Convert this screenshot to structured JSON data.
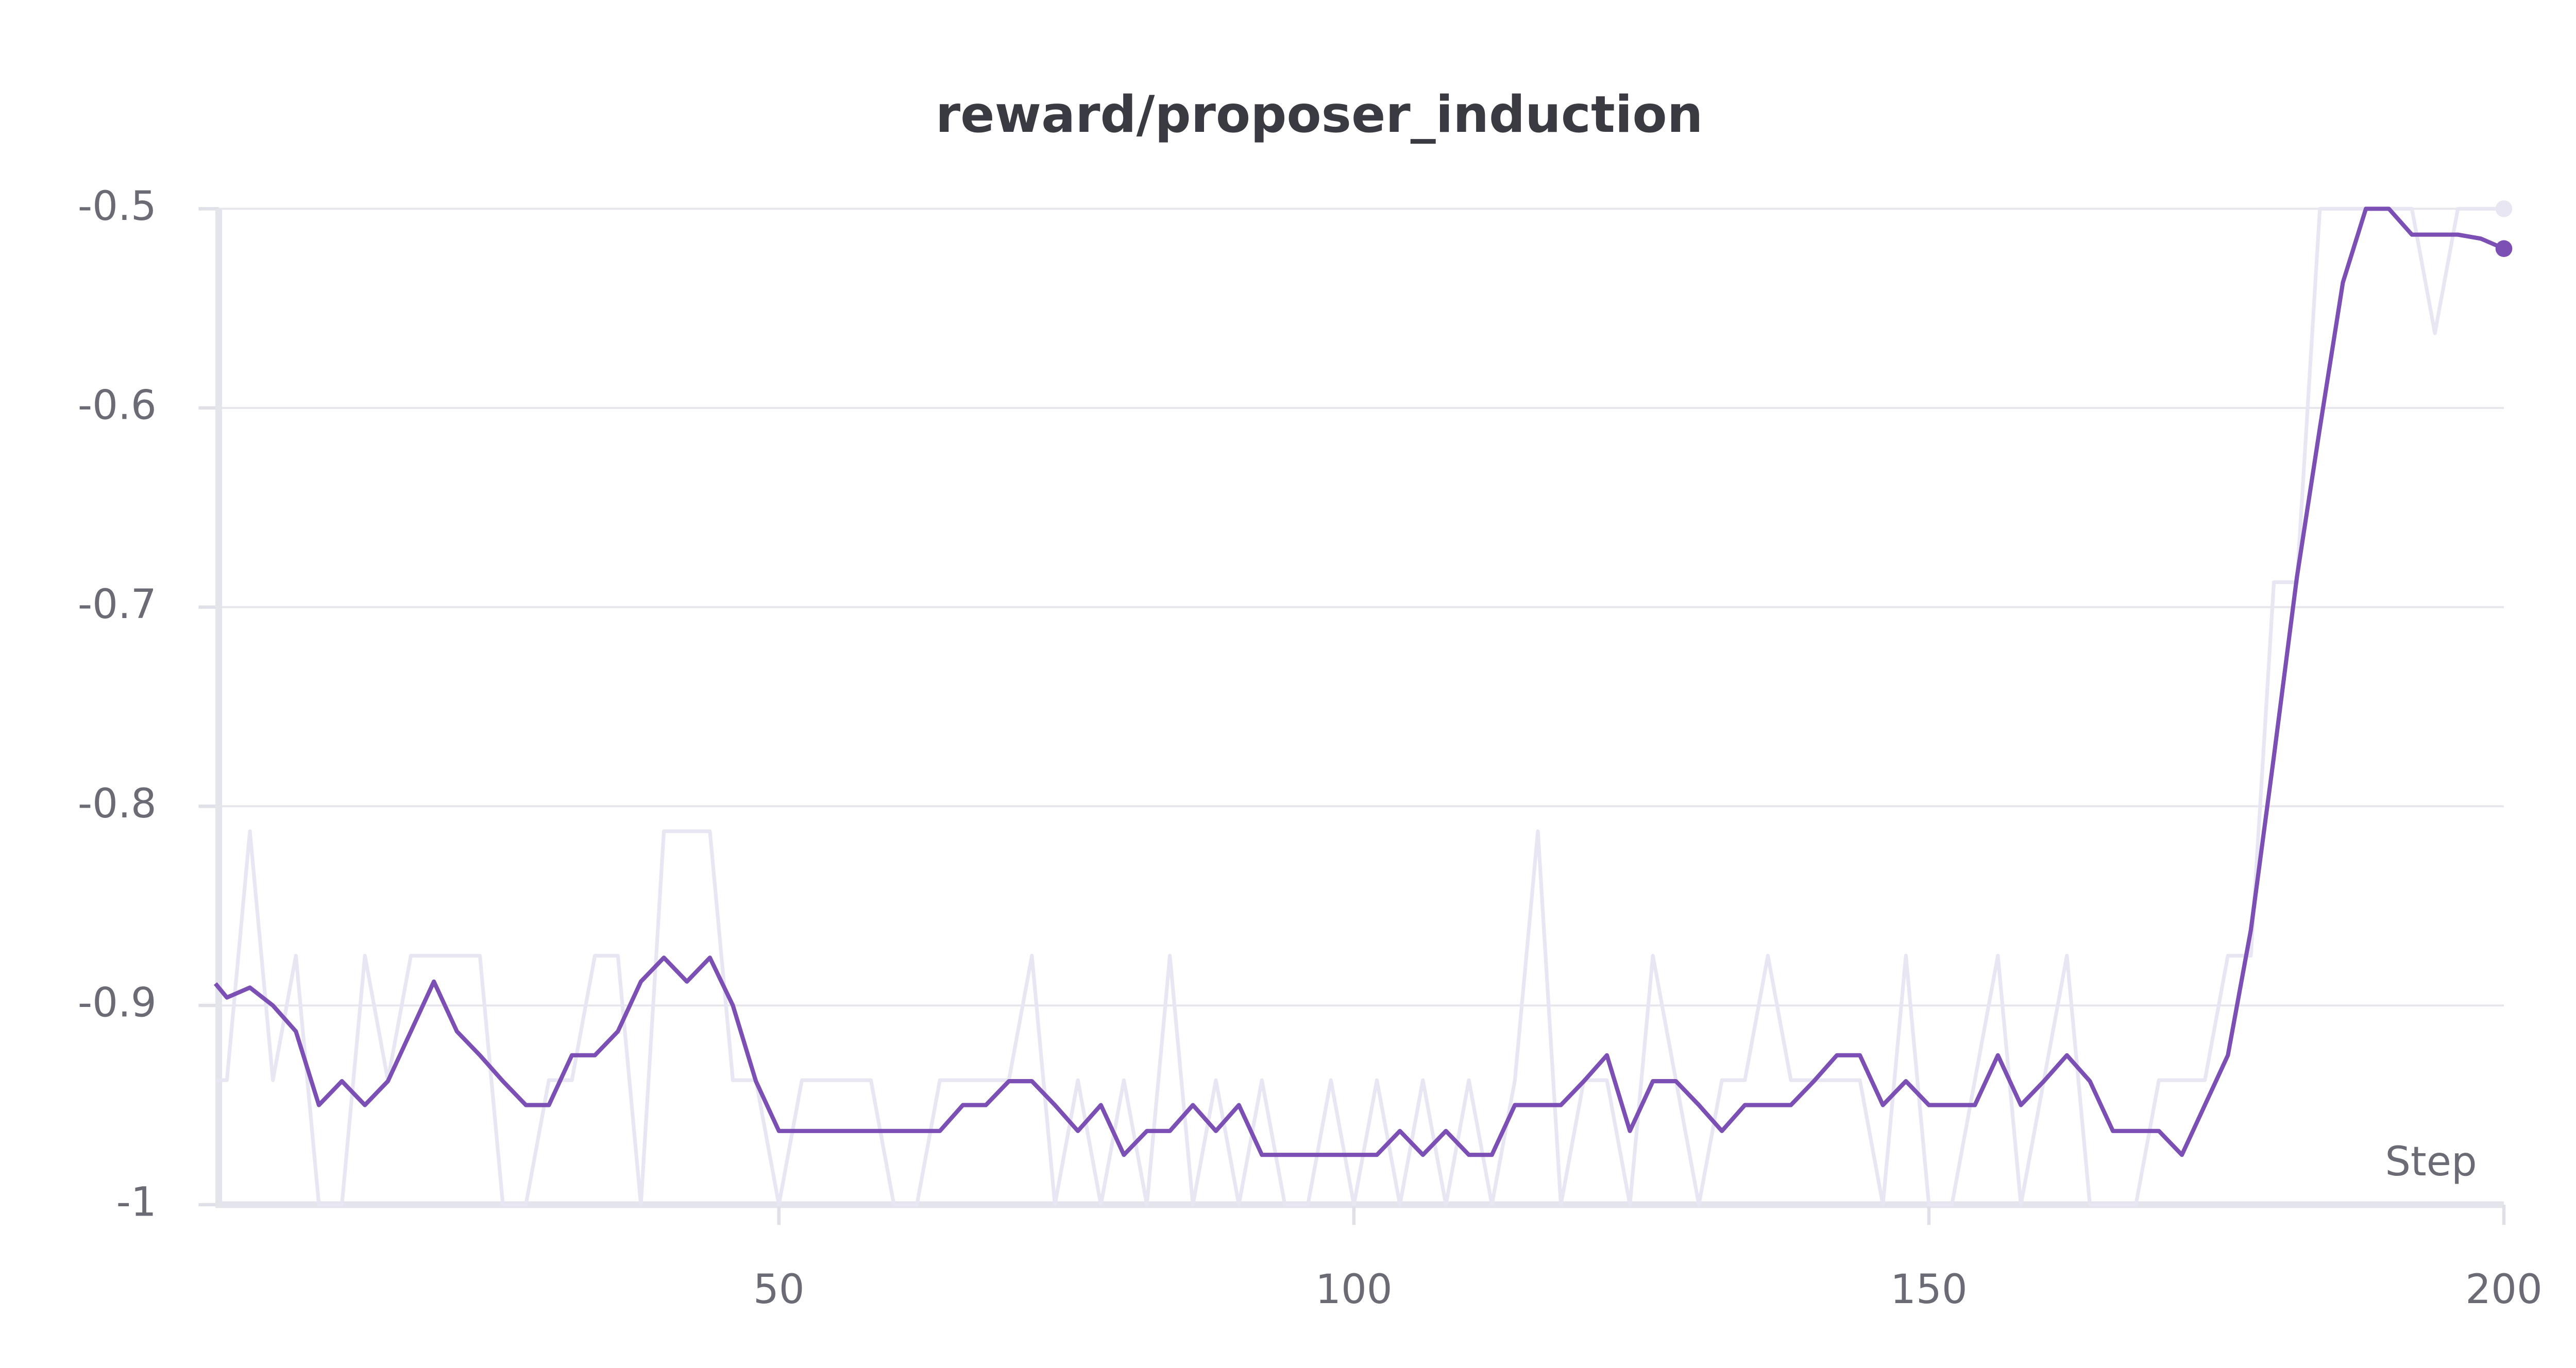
{
  "chart_data": {
    "type": "line",
    "title": "reward/proposer_induction",
    "xlabel": "Step",
    "x": [
      1,
      2,
      4,
      6,
      8,
      10,
      12,
      14,
      16,
      18,
      20,
      22,
      24,
      26,
      28,
      30,
      32,
      34,
      36,
      38,
      40,
      42,
      44,
      46,
      48,
      50,
      52,
      54,
      56,
      58,
      60,
      62,
      64,
      66,
      68,
      70,
      72,
      74,
      76,
      78,
      80,
      82,
      84,
      86,
      88,
      90,
      92,
      94,
      96,
      98,
      100,
      102,
      104,
      106,
      108,
      110,
      112,
      114,
      116,
      118,
      120,
      122,
      124,
      126,
      128,
      130,
      132,
      134,
      136,
      138,
      140,
      142,
      144,
      146,
      148,
      150,
      152,
      154,
      156,
      158,
      160,
      162,
      164,
      166,
      168,
      170,
      172,
      174,
      176,
      178,
      180,
      182,
      184,
      186,
      188,
      190,
      192,
      194,
      196,
      198,
      200
    ],
    "series": [
      {
        "color": "#e8e6f2",
        "values": [
          -0.9375,
          -0.9375,
          -0.8125,
          -0.9375,
          -0.875,
          -1,
          -1,
          -0.875,
          -0.9375,
          -0.875,
          -0.875,
          -0.875,
          -0.875,
          -1,
          -1,
          -0.9375,
          -0.9375,
          -0.875,
          -0.875,
          -1,
          -0.8125,
          -0.8125,
          -0.8125,
          -0.9375,
          -0.9375,
          -1,
          -0.9375,
          -0.9375,
          -0.9375,
          -0.9375,
          -1,
          -1,
          -0.9375,
          -0.9375,
          -0.9375,
          -0.9375,
          -0.875,
          -1,
          -0.9375,
          -1,
          -0.9375,
          -1,
          -0.875,
          -1,
          -0.9375,
          -1,
          -0.9375,
          -1,
          -1,
          -0.9375,
          -1,
          -0.9375,
          -1,
          -0.9375,
          -1,
          -0.9375,
          -1,
          -0.9375,
          -0.8125,
          -1,
          -0.9375,
          -0.9375,
          -1,
          -0.875,
          -0.9375,
          -1,
          -0.9375,
          -0.9375,
          -0.875,
          -0.9375,
          -0.9375,
          -0.9375,
          -0.9375,
          -1,
          -0.875,
          -1,
          -1,
          -0.9375,
          -0.875,
          -1,
          -0.9375,
          -0.875,
          -1,
          -1,
          -1,
          -0.9375,
          -0.9375,
          -0.9375,
          -0.875,
          -0.875,
          -0.6875,
          -0.6875,
          -0.5,
          -0.5,
          -0.5,
          -0.5,
          -0.5,
          -0.5625,
          -0.5,
          -0.5,
          -0.5
        ]
      },
      {
        "color": "#7b4fb3",
        "values": [
          -0.889,
          -0.896,
          -0.891,
          -0.9,
          -0.913,
          -0.95,
          -0.938,
          -0.95,
          -0.938,
          -0.913,
          -0.888,
          -0.913,
          -0.925,
          -0.938,
          -0.95,
          -0.95,
          -0.925,
          -0.925,
          -0.913,
          -0.888,
          -0.876,
          -0.888,
          -0.876,
          -0.9,
          -0.938,
          -0.963,
          -0.963,
          -0.963,
          -0.963,
          -0.963,
          -0.963,
          -0.963,
          -0.963,
          -0.95,
          -0.95,
          -0.938,
          -0.938,
          -0.95,
          -0.963,
          -0.95,
          -0.975,
          -0.963,
          -0.963,
          -0.95,
          -0.963,
          -0.95,
          -0.975,
          -0.975,
          -0.975,
          -0.975,
          -0.975,
          -0.975,
          -0.963,
          -0.975,
          -0.963,
          -0.975,
          -0.975,
          -0.95,
          -0.95,
          -0.95,
          -0.938,
          -0.925,
          -0.963,
          -0.938,
          -0.938,
          -0.95,
          -0.963,
          -0.95,
          -0.95,
          -0.95,
          -0.938,
          -0.925,
          -0.925,
          -0.95,
          -0.938,
          -0.95,
          -0.95,
          -0.95,
          -0.925,
          -0.95,
          -0.938,
          -0.925,
          -0.938,
          -0.963,
          -0.963,
          -0.963,
          -0.975,
          -0.95,
          -0.925,
          -0.862,
          -0.775,
          -0.685,
          -0.61,
          -0.537,
          -0.5,
          -0.5,
          -0.513,
          -0.513,
          -0.513,
          -0.515,
          -0.52
        ]
      }
    ],
    "xlim": [
      1,
      200
    ],
    "xticks": [
      50,
      100,
      150,
      200
    ],
    "ylim": [
      -1,
      -0.5
    ],
    "yticks": [
      -0.5,
      -0.6,
      -0.7,
      -0.8,
      -0.9,
      -1
    ],
    "grid": true
  }
}
